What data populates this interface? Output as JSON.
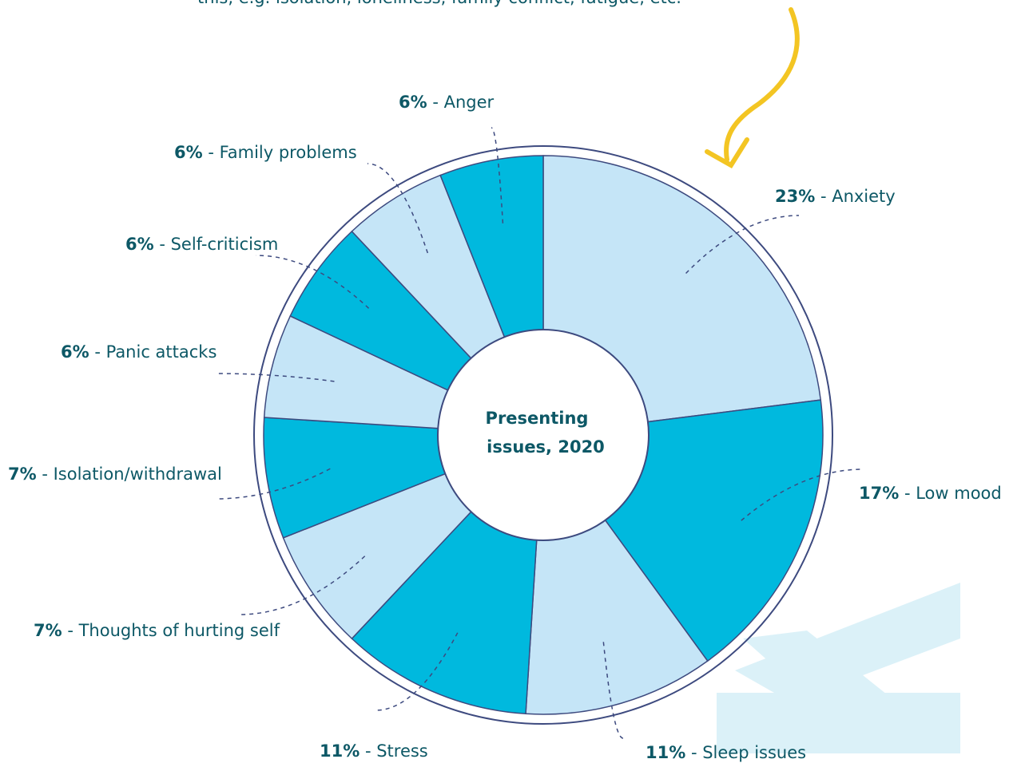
{
  "chart_data": {
    "type": "pie",
    "title": "Presenting issues, 2020",
    "annotation": "this, e.g. isolation, loneliness, family conflict, fatigue, etc.",
    "separator": " - ",
    "categories": [
      "Anxiety",
      "Low mood",
      "Sleep issues",
      "Stress",
      "Thoughts of hurting self",
      "Isolation/withdrawal",
      "Panic attacks",
      "Self-criticism",
      "Family problems",
      "Anger"
    ],
    "values": [
      23,
      17,
      11,
      11,
      7,
      7,
      6,
      6,
      6,
      6
    ],
    "value_labels": [
      "23%",
      "17%",
      "11%",
      "11%",
      "7%",
      "7%",
      "6%",
      "6%",
      "6%",
      "6%"
    ],
    "colors": [
      "#c5e5f7",
      "#00b9de",
      "#c5e5f7",
      "#00b9de",
      "#c5e5f7",
      "#00b9de",
      "#c5e5f7",
      "#00b9de",
      "#c5e5f7",
      "#00b9de"
    ]
  }
}
